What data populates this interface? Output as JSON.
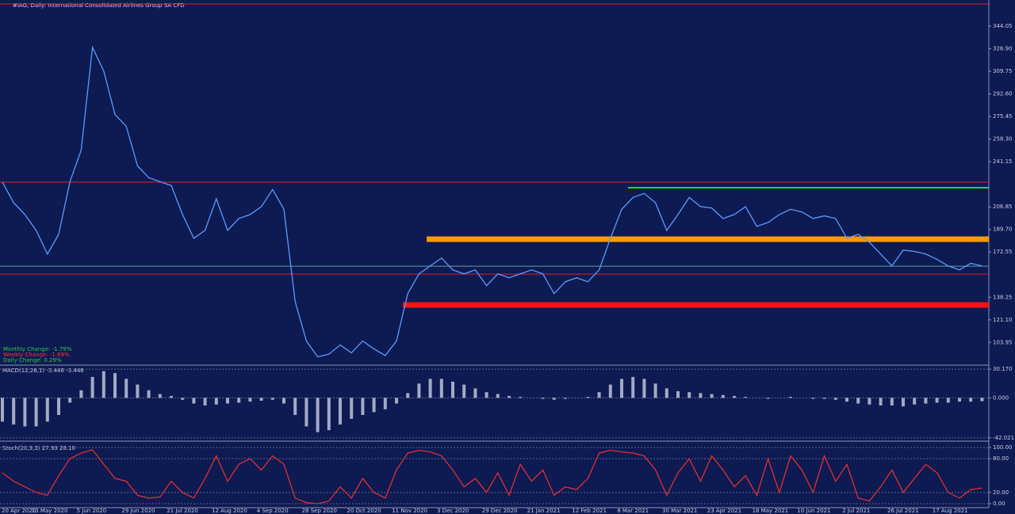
{
  "header": {
    "title": "#IAG, Daily:  International Consolidated Airlines Group SA CFD"
  },
  "changes": [
    {
      "label": "Monthly Change: -1.79%",
      "color": "#2ecc40"
    },
    {
      "label": "Weekly Change: -1.69%",
      "color": "#ff3030"
    },
    {
      "label": "Daily Change: 0.29%",
      "color": "#2ecc40"
    }
  ],
  "chart_data": [
    {
      "type": "line",
      "categories": [
        "20 Apr 2020",
        null,
        null,
        null,
        "13 May 2020",
        null,
        null,
        null,
        "5 Jun 2020",
        null,
        null,
        null,
        "29 Jun 2020",
        null,
        null,
        null,
        "21 Jul 2020",
        null,
        null,
        null,
        "12 Aug 2020",
        null,
        null,
        null,
        "4 Sep 2020",
        null,
        null,
        null,
        "28 Sep 2020",
        null,
        null,
        null,
        "20 Oct 2020",
        null,
        null,
        null,
        "11 Nov 2020",
        null,
        null,
        null,
        "3 Dec 2020",
        null,
        null,
        null,
        "29 Dec 2020",
        null,
        null,
        null,
        "21 Jan 2021",
        null,
        null,
        null,
        "12 Feb 2021",
        null,
        null,
        null,
        "8 Mar 2021",
        null,
        null,
        null,
        "30 Mar 2021",
        null,
        null,
        null,
        "23 Apr 2021",
        null,
        null,
        null,
        "18 May 2021",
        null,
        null,
        null,
        "10 Jun 2021",
        null,
        null,
        null,
        "2 Jul 2021",
        null,
        null,
        null,
        "26 Jul 2021",
        null,
        null,
        null,
        "17 Aug 2021",
        null,
        null,
        null
      ],
      "values": [
        225.6,
        210,
        201,
        189,
        171,
        186,
        226,
        250,
        328,
        310,
        277,
        268,
        238,
        229,
        226,
        223,
        201,
        183,
        189,
        213,
        189,
        198,
        201,
        207,
        220,
        205,
        135,
        105,
        93,
        95,
        102,
        96,
        105,
        99,
        94,
        105,
        141,
        156,
        162,
        168,
        159,
        156,
        159,
        147,
        156,
        153,
        156,
        159,
        156,
        141,
        150,
        153,
        150,
        159,
        183,
        205,
        214,
        217,
        210,
        189,
        201,
        214,
        207,
        206,
        198,
        201,
        207,
        192,
        195,
        201,
        205,
        203,
        198,
        200,
        198,
        183,
        186,
        180,
        171,
        162,
        174,
        173,
        171,
        167,
        162,
        159,
        164,
        162
      ],
      "color": "#5b9bff",
      "ylim": [
        86.7,
        363.9
      ],
      "yticks": [
        344.05,
        {
          "value": 326.9,
          "label": "326.90"
        },
        309.75,
        {
          "value": 292.6,
          "label": "292.60"
        },
        275.45,
        {
          "value": 258.3,
          "label": "258.30"
        },
        241.15,
        206.85,
        {
          "value": 189.7,
          "label": "189.70"
        },
        172.55,
        138.25,
        {
          "value": 121.1,
          "label": "121.10"
        },
        103.95
      ],
      "levels": [
        {
          "value": 360.9,
          "color": "#e02020",
          "kind": "line"
        },
        {
          "value": 225.6,
          "color": "#e02020",
          "kind": "line"
        },
        {
          "value": 221.4,
          "color": "#22dd22",
          "kind": "line"
        },
        {
          "value": 182.3,
          "color": "#ff9900",
          "kind": "zone"
        },
        {
          "value": 161.8,
          "color": "#5fa0a0",
          "kind": "line"
        },
        {
          "value": 155.8,
          "color": "#e02020",
          "kind": "line"
        },
        {
          "value": 132.4,
          "color": "#ff1010",
          "kind": "zone"
        }
      ]
    },
    {
      "type": "bar",
      "title": "MACD(12,26,1) -3.446 -3.446",
      "values": [
        -25,
        -28,
        -30,
        -30,
        -25,
        -18,
        -5,
        8,
        22,
        28,
        26,
        20,
        14,
        8,
        4,
        2,
        -2,
        -6,
        -8,
        -7,
        -6,
        -5,
        -4,
        -3,
        -2,
        -6,
        -18,
        -30,
        -36,
        -34,
        -28,
        -22,
        -18,
        -15,
        -12,
        -6,
        5,
        15,
        20,
        20,
        17,
        14,
        10,
        6,
        4,
        2,
        1,
        0,
        -1,
        -2,
        -1,
        0,
        1,
        6,
        14,
        20,
        22,
        20,
        15,
        10,
        7,
        6,
        5,
        4,
        3,
        2,
        1,
        0,
        -1,
        0,
        1,
        0,
        -1,
        -1,
        -2,
        -4,
        -6,
        -7,
        -8,
        -8,
        -9,
        -7,
        -6,
        -5,
        -5,
        -4,
        -4,
        -3.5
      ],
      "color": "#c8d0e0",
      "ylim": [
        -45.5,
        33.6
      ],
      "yticks": [
        {
          "value": 30.17,
          "label": "30.170"
        },
        {
          "value": 0,
          "label": "0.000"
        },
        -42.021
      ]
    },
    {
      "type": "line",
      "title": "Stoch(20,3,3) 27.93 28.10",
      "values": [
        55,
        40,
        30,
        20,
        15,
        50,
        80,
        90,
        96,
        70,
        45,
        40,
        15,
        10,
        12,
        40,
        20,
        10,
        45,
        85,
        40,
        70,
        80,
        60,
        85,
        70,
        10,
        2,
        0,
        5,
        30,
        10,
        45,
        20,
        10,
        60,
        90,
        95,
        92,
        85,
        60,
        30,
        45,
        20,
        55,
        15,
        70,
        40,
        60,
        15,
        30,
        25,
        45,
        90,
        95,
        92,
        90,
        85,
        60,
        15,
        55,
        80,
        40,
        85,
        60,
        30,
        50,
        15,
        80,
        20,
        85,
        60,
        20,
        85,
        40,
        70,
        10,
        5,
        30,
        60,
        20,
        45,
        70,
        55,
        20,
        10,
        25,
        28
      ],
      "color": "#e03030",
      "ylim": [
        -7,
        107
      ],
      "yticks": [
        {
          "value": 100,
          "label": "100.00"
        },
        {
          "value": 80,
          "label": "80.00"
        },
        {
          "value": 20,
          "label": "20.00"
        },
        {
          "value": 0,
          "label": "0.00"
        }
      ]
    }
  ]
}
